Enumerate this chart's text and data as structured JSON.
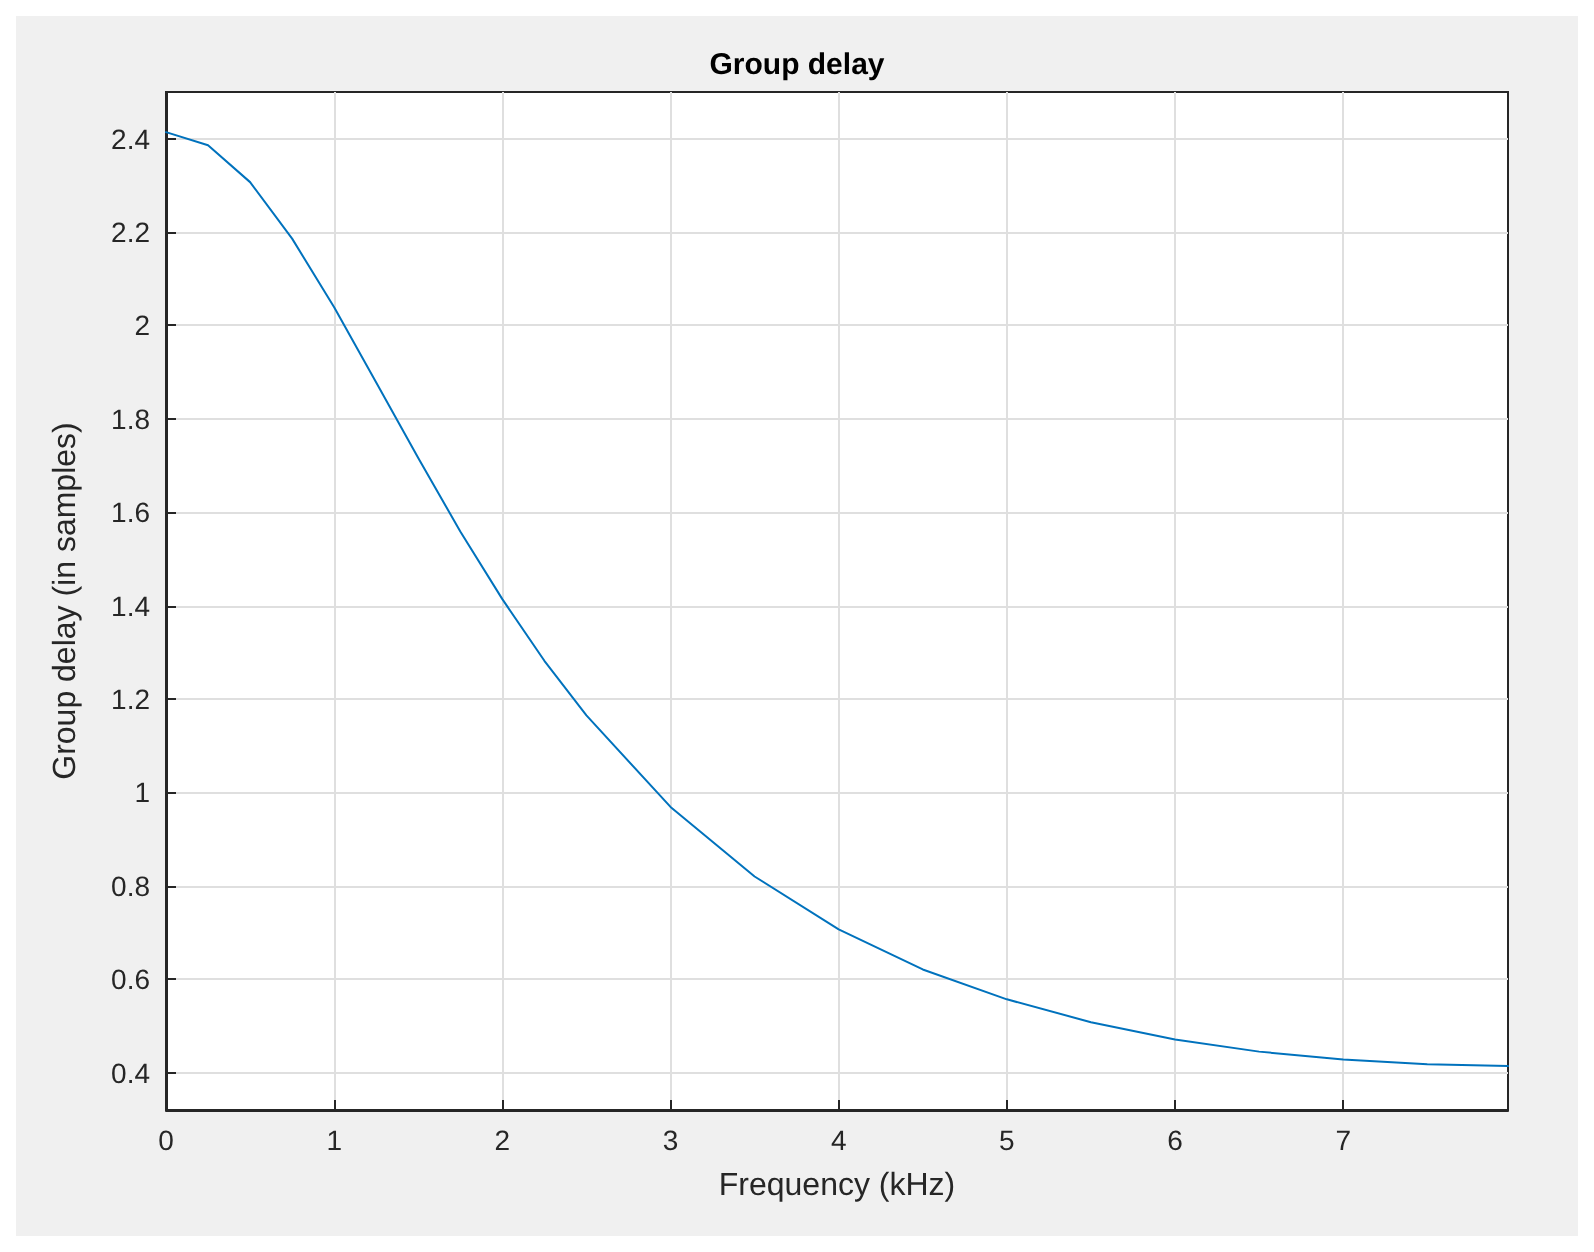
{
  "chart_data": {
    "type": "line",
    "title": "Group delay",
    "xlabel": "Frequency (kHz)",
    "ylabel": "Group delay (in samples)",
    "x": [
      0,
      0.25,
      0.5,
      0.75,
      1,
      1.25,
      1.5,
      1.75,
      2,
      2.25,
      2.5,
      3,
      3.5,
      4,
      4.5,
      5,
      5.5,
      6,
      6.5,
      7,
      7.5,
      7.98
    ],
    "series": [
      {
        "color": "#0072bd",
        "values": [
          2.414,
          2.386,
          2.307,
          2.186,
          2.039,
          1.878,
          1.716,
          1.559,
          1.414,
          1.282,
          1.165,
          0.969,
          0.82,
          0.707,
          0.621,
          0.557,
          0.508,
          0.471,
          0.445,
          0.428,
          0.418,
          0.414
        ]
      }
    ],
    "xlim": [
      0,
      7.98
    ],
    "xticks": [
      0,
      1,
      2,
      3,
      4,
      5,
      6,
      7
    ],
    "ylim": [
      0.32,
      2.5
    ],
    "yticks": [
      0.4,
      0.6,
      0.8,
      1,
      1.2,
      1.4,
      1.6,
      1.8,
      2,
      2.2,
      2.4
    ],
    "grid": true,
    "marker": "none",
    "line_style": "solid"
  }
}
